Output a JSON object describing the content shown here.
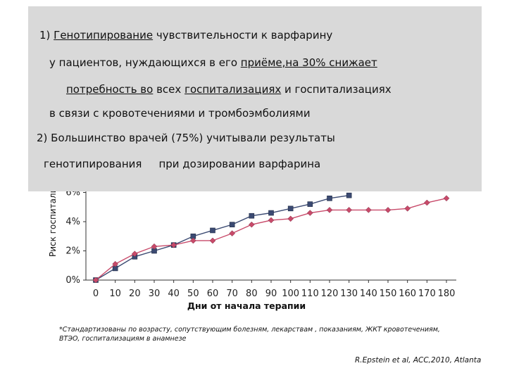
{
  "chart_data": {
    "type": "line",
    "ylabel": "Риск госпитализации",
    "xlabel": "Дни от начала терапии",
    "ylim": [
      0,
      8
    ],
    "x": [
      0,
      10,
      20,
      30,
      40,
      50,
      60,
      70,
      80,
      90,
      100,
      110,
      120,
      130,
      140,
      150,
      160,
      170,
      180
    ],
    "y_ticks": [
      "0%",
      "2%",
      "4%",
      "6%"
    ],
    "series": [
      {
        "color": "#3b4a72",
        "marker": "square",
        "values": [
          0,
          0.8,
          1.6,
          2.0,
          2.4,
          3.0,
          3.4,
          3.8,
          4.4,
          4.6,
          4.9,
          5.2,
          5.6,
          5.8,
          null,
          null,
          null,
          null,
          null
        ]
      },
      {
        "color": "#c84a6a",
        "marker": "diamond",
        "values": [
          0,
          1.1,
          1.8,
          2.3,
          2.4,
          2.7,
          2.7,
          3.2,
          3.8,
          4.1,
          4.2,
          4.6,
          4.8,
          4.8,
          4.8,
          4.8,
          4.9,
          5.3,
          5.6
        ]
      }
    ]
  },
  "overlay": {
    "line1_prefix": "1) ",
    "line1_underlined": "Генотипирование",
    "line1_rest": " чувствительности к варфарину",
    "line2_prefix": "у пациентов, нуждающихся в его ",
    "line2_underlined": "приёме,на 30% снижает",
    "line3_underlined_a": "потребность во",
    "line3_mid": " всех ",
    "line3_underlined_b": "госпитализациях",
    "line3_rest": " и госпитализациях",
    "line4": "в связи с кровотечениями и тромбоэмболиями",
    "line5": "2) Большинство врачей (75%) учитывали результаты",
    "line6_a": "генотипирования",
    "line6_b": "при дозировании варфарина"
  },
  "footnote": "*Стандартизованы по возрасту, сопутствующим болезням, лекарствам , показаниям, ЖКТ кровотечениям, ВТЭО, госпитализациям в анамнезе",
  "citation": "R.Epstein et al, ACC,2010, Atlanta"
}
